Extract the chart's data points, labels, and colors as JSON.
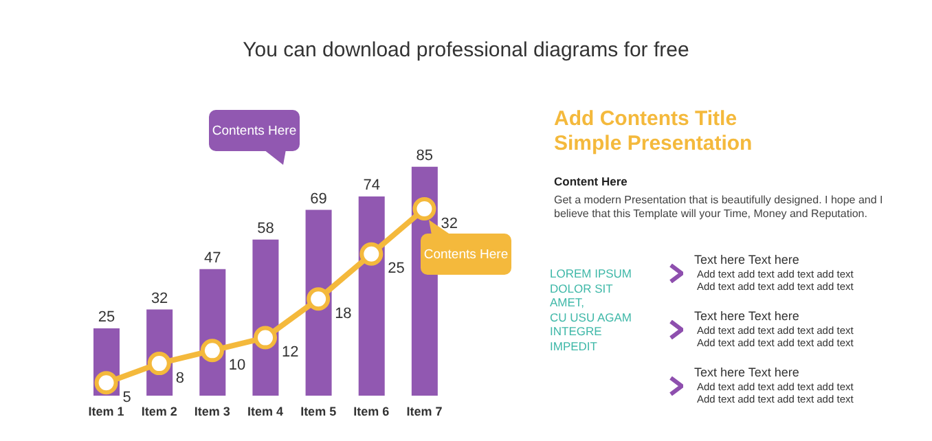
{
  "chart_data": {
    "type": "bar",
    "subtitle": "You can download professional diagrams for free",
    "categories": [
      "Item 1",
      "Item 2",
      "Item 3",
      "Item 4",
      "Item 5",
      "Item 6",
      "Item 7"
    ],
    "data_labels": true,
    "marker": "circle",
    "tick_labels": "x",
    "series": [
      {
        "color": "#9158b1",
        "values": [
          25,
          32,
          47,
          58,
          69,
          74,
          85
        ]
      },
      {
        "type": "line",
        "axis": "y2",
        "color": "#f4b93c",
        "values": [
          5,
          8,
          10,
          12,
          18,
          25,
          32
        ]
      }
    ],
    "annotations": [
      "Contents Here",
      "Contents Here",
      "Add Contents Title",
      "Simple Presentation",
      "Content Here",
      "Get a modern Presentation that is beautifully designed. I hope and I believe that this Template will your Time, Money and Reputation.",
      "LOREM IPSUM\nDOLOR SIT\nAMET,\nCU USU AGAM\nINTEGRE\nIMPEDIT",
      "Text here Text here",
      "Add text add text add text add text",
      "Add text add text add text add text",
      "Text here Text here",
      "Add text add text add text add text",
      "Add text add text add text add text",
      "Text here Text here",
      "Add text add text add text add text",
      "Add text add text add text add text"
    ]
  }
}
